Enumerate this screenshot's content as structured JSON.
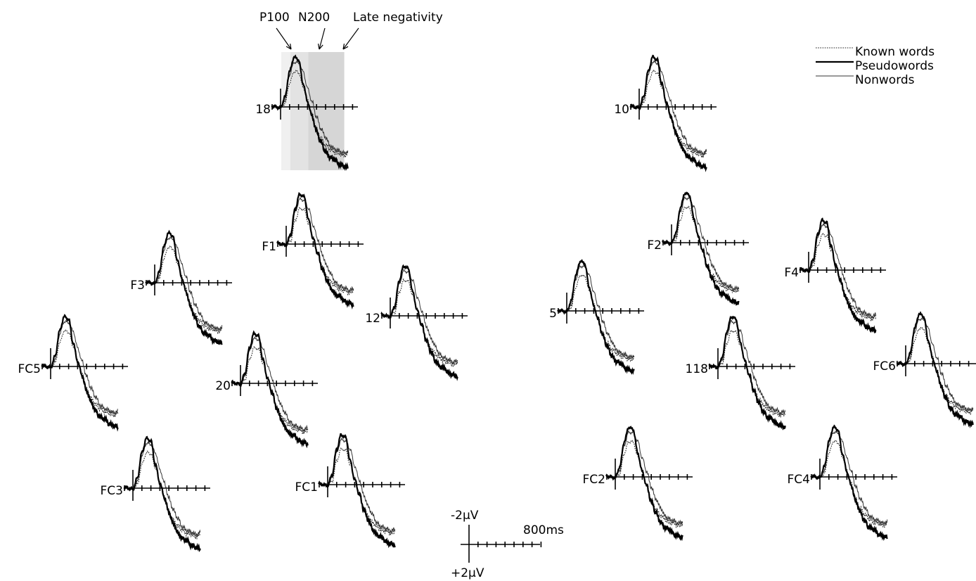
{
  "chart_data": {
    "type": "line",
    "title": "",
    "x_unit": "ms",
    "y_unit": "µV",
    "y_axis_orientation": "negative-up",
    "scale_bar": {
      "neg_label": "-2µV",
      "pos_label": "+2µV",
      "time_label": "800ms",
      "x_range": [
        0,
        800
      ],
      "tick_count": 8
    },
    "legend": {
      "placement": "top-right",
      "entries": [
        {
          "key": "known",
          "label": "Known words",
          "style": "dotted"
        },
        {
          "key": "pseudo",
          "label": "Pseudowords",
          "style": "thick-solid"
        },
        {
          "key": "non",
          "label": "Nonwords",
          "style": "thin-solid"
        }
      ]
    },
    "components": [
      {
        "label": "P100",
        "window_ms": [
          0,
          100
        ],
        "shade": "#f0f0f0"
      },
      {
        "label": "N200",
        "window_ms": [
          100,
          300
        ],
        "shade": "#e3e3e3"
      },
      {
        "label": "Late negativity",
        "window_ms": [
          300,
          700
        ],
        "shade": "#d6d6d6"
      }
    ],
    "waveforms": {
      "time_ms": [
        -100,
        0,
        50,
        100,
        150,
        200,
        250,
        300,
        350,
        400,
        450,
        500,
        550,
        600,
        650,
        700,
        750
      ],
      "known": [
        0.1,
        -0.1,
        0.4,
        2.8,
        4.2,
        4.1,
        2.4,
        0.8,
        -0.9,
        -2.7,
        -3.8,
        -4.5,
        -5.0,
        -5.4,
        -5.5,
        -5.8,
        -5.5
      ],
      "pseudo": [
        0.1,
        -0.1,
        1.2,
        4.2,
        5.9,
        5.6,
        2.8,
        0.6,
        -1.1,
        -2.9,
        -4.2,
        -5.3,
        -6.0,
        -6.2,
        -6.8,
        -7.0,
        -7.2
      ],
      "non": [
        0.1,
        -0.1,
        0.8,
        3.8,
        5.3,
        5.2,
        4.2,
        2.2,
        0.6,
        -1.2,
        -2.6,
        -3.6,
        -4.6,
        -5.0,
        -5.2,
        -5.5,
        -5.3
      ]
    },
    "electrodes": [
      {
        "id": "18",
        "highlight": true
      },
      {
        "id": "10"
      },
      {
        "id": "F1"
      },
      {
        "id": "F2"
      },
      {
        "id": "F3"
      },
      {
        "id": "F4"
      },
      {
        "id": "12"
      },
      {
        "id": "5"
      },
      {
        "id": "FC5"
      },
      {
        "id": "20"
      },
      {
        "id": "118"
      },
      {
        "id": "FC6"
      },
      {
        "id": "FC3"
      },
      {
        "id": "FC1"
      },
      {
        "id": "FC2"
      },
      {
        "id": "FC4"
      }
    ]
  }
}
